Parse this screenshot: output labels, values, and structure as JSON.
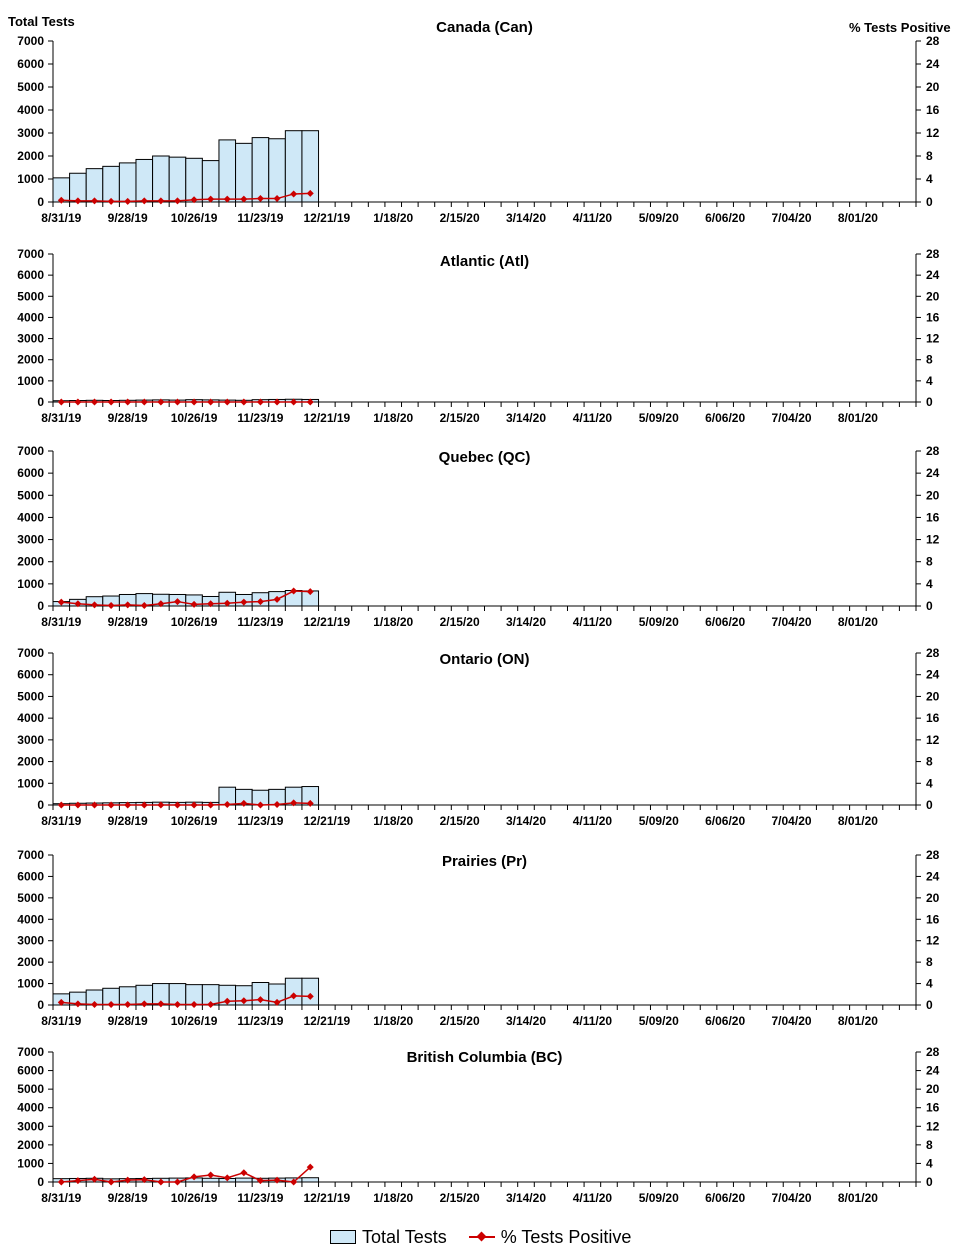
{
  "axis_titles": {
    "left": "Total Tests",
    "right": "% Tests Positive"
  },
  "legend": {
    "bars": "Total Tests",
    "line": "% Tests Positive"
  },
  "colors": {
    "bar_fill": "#cfe8f7",
    "bar_stroke": "#000000",
    "line": "#cc0000"
  },
  "chart_data": [
    {
      "type": "bar",
      "title": "Canada (Can)",
      "ylim": [
        0,
        7000
      ],
      "y_ticks": [
        0,
        1000,
        2000,
        3000,
        4000,
        5000,
        6000,
        7000
      ],
      "y2lim": [
        0,
        28
      ],
      "y2_ticks": [
        0,
        4,
        8,
        12,
        16,
        20,
        24,
        28
      ],
      "x_tick_labels": [
        "8/31/19",
        "9/28/19",
        "10/26/19",
        "11/23/19",
        "12/21/19",
        "1/18/20",
        "2/15/20",
        "3/14/20",
        "4/11/20",
        "5/09/20",
        "6/06/20",
        "7/04/20",
        "8/01/20"
      ],
      "total_weeks": 52,
      "series": [
        {
          "name": "Total Tests",
          "axis": "left",
          "type": "bar",
          "values": [
            1050,
            1250,
            1450,
            1550,
            1700,
            1850,
            2000,
            1950,
            1900,
            1800,
            2700,
            2550,
            2800,
            2750,
            3100,
            3100
          ]
        },
        {
          "name": "% Tests Positive",
          "axis": "right",
          "type": "line",
          "values": [
            0.3,
            0.2,
            0.2,
            0.1,
            0.1,
            0.2,
            0.2,
            0.2,
            0.4,
            0.5,
            0.5,
            0.5,
            0.6,
            0.6,
            1.4,
            1.5
          ]
        }
      ]
    },
    {
      "type": "bar",
      "title": "Atlantic (Atl)",
      "ylim": [
        0,
        7000
      ],
      "y_ticks": [
        0,
        1000,
        2000,
        3000,
        4000,
        5000,
        6000,
        7000
      ],
      "y2lim": [
        0,
        28
      ],
      "y2_ticks": [
        0,
        4,
        8,
        12,
        16,
        20,
        24,
        28
      ],
      "x_tick_labels": [
        "8/31/19",
        "9/28/19",
        "10/26/19",
        "11/23/19",
        "12/21/19",
        "1/18/20",
        "2/15/20",
        "3/14/20",
        "4/11/20",
        "5/09/20",
        "6/06/20",
        "7/04/20",
        "8/01/20"
      ],
      "total_weeks": 52,
      "series": [
        {
          "name": "Total Tests",
          "axis": "left",
          "type": "bar",
          "values": [
            60,
            70,
            80,
            70,
            80,
            90,
            100,
            90,
            110,
            100,
            90,
            80,
            110,
            120,
            130,
            120
          ]
        },
        {
          "name": "% Tests Positive",
          "axis": "right",
          "type": "line",
          "values": [
            0,
            0,
            0,
            0,
            0,
            0,
            0,
            0,
            0,
            0,
            0,
            0,
            0,
            0,
            0,
            0
          ]
        }
      ]
    },
    {
      "type": "bar",
      "title": "Quebec (QC)",
      "ylim": [
        0,
        7000
      ],
      "y_ticks": [
        0,
        1000,
        2000,
        3000,
        4000,
        5000,
        6000,
        7000
      ],
      "y2lim": [
        0,
        28
      ],
      "y2_ticks": [
        0,
        4,
        8,
        12,
        16,
        20,
        24,
        28
      ],
      "x_tick_labels": [
        "8/31/19",
        "9/28/19",
        "10/26/19",
        "11/23/19",
        "12/21/19",
        "1/18/20",
        "2/15/20",
        "3/14/20",
        "4/11/20",
        "5/09/20",
        "6/06/20",
        "7/04/20",
        "8/01/20"
      ],
      "total_weeks": 52,
      "series": [
        {
          "name": "Total Tests",
          "axis": "left",
          "type": "bar",
          "values": [
            200,
            300,
            420,
            450,
            520,
            560,
            530,
            520,
            500,
            430,
            620,
            520,
            600,
            650,
            700,
            680
          ]
        },
        {
          "name": "% Tests Positive",
          "axis": "right",
          "type": "line",
          "values": [
            0.7,
            0.4,
            0.2,
            0.1,
            0.2,
            0.1,
            0.4,
            0.8,
            0.3,
            0.4,
            0.5,
            0.7,
            0.8,
            1.2,
            2.7,
            2.6
          ]
        }
      ]
    },
    {
      "type": "bar",
      "title": "Ontario (ON)",
      "ylim": [
        0,
        7000
      ],
      "y_ticks": [
        0,
        1000,
        2000,
        3000,
        4000,
        5000,
        6000,
        7000
      ],
      "y2lim": [
        0,
        28
      ],
      "y2_ticks": [
        0,
        4,
        8,
        12,
        16,
        20,
        24,
        28
      ],
      "x_tick_labels": [
        "8/31/19",
        "9/28/19",
        "10/26/19",
        "11/23/19",
        "12/21/19",
        "1/18/20",
        "2/15/20",
        "3/14/20",
        "4/11/20",
        "5/09/20",
        "6/06/20",
        "7/04/20",
        "8/01/20"
      ],
      "total_weeks": 52,
      "series": [
        {
          "name": "Total Tests",
          "axis": "left",
          "type": "bar",
          "values": [
            60,
            80,
            90,
            100,
            110,
            120,
            130,
            120,
            130,
            120,
            820,
            720,
            680,
            720,
            820,
            850
          ]
        },
        {
          "name": "% Tests Positive",
          "axis": "right",
          "type": "line",
          "values": [
            0,
            0,
            0,
            0,
            0,
            0,
            0,
            0,
            0,
            0,
            0.1,
            0.3,
            0,
            0.1,
            0.4,
            0.3
          ]
        }
      ]
    },
    {
      "type": "bar",
      "title": "Prairies (Pr)",
      "ylim": [
        0,
        7000
      ],
      "y_ticks": [
        0,
        1000,
        2000,
        3000,
        4000,
        5000,
        6000,
        7000
      ],
      "y2lim": [
        0,
        28
      ],
      "y2_ticks": [
        0,
        4,
        8,
        12,
        16,
        20,
        24,
        28
      ],
      "x_tick_labels": [
        "8/31/19",
        "9/28/19",
        "10/26/19",
        "11/23/19",
        "12/21/19",
        "1/18/20",
        "2/15/20",
        "3/14/20",
        "4/11/20",
        "5/09/20",
        "6/06/20",
        "7/04/20",
        "8/01/20"
      ],
      "total_weeks": 52,
      "series": [
        {
          "name": "Total Tests",
          "axis": "left",
          "type": "bar",
          "values": [
            520,
            600,
            700,
            780,
            850,
            920,
            1000,
            1000,
            950,
            950,
            920,
            900,
            1050,
            980,
            1250,
            1250
          ]
        },
        {
          "name": "% Tests Positive",
          "axis": "right",
          "type": "line",
          "values": [
            0.5,
            0.2,
            0.1,
            0.1,
            0.1,
            0.2,
            0.2,
            0.1,
            0.1,
            0.1,
            0.7,
            0.8,
            1.0,
            0.5,
            1.7,
            1.6
          ]
        }
      ]
    },
    {
      "type": "bar",
      "title": "British Columbia (BC)",
      "ylim": [
        0,
        7000
      ],
      "y_ticks": [
        0,
        1000,
        2000,
        3000,
        4000,
        5000,
        6000,
        7000
      ],
      "y2lim": [
        0,
        28
      ],
      "y2_ticks": [
        0,
        4,
        8,
        12,
        16,
        20,
        24,
        28
      ],
      "x_tick_labels": [
        "8/31/19",
        "9/28/19",
        "10/26/19",
        "11/23/19",
        "12/21/19",
        "1/18/20",
        "2/15/20",
        "3/14/20",
        "4/11/20",
        "5/09/20",
        "6/06/20",
        "7/04/20",
        "8/01/20"
      ],
      "total_weeks": 52,
      "series": [
        {
          "name": "Total Tests",
          "axis": "left",
          "type": "bar",
          "values": [
            180,
            190,
            200,
            170,
            180,
            190,
            200,
            210,
            220,
            200,
            190,
            210,
            200,
            210,
            220,
            230
          ]
        },
        {
          "name": "% Tests Positive",
          "axis": "right",
          "type": "line",
          "values": [
            0,
            0.3,
            0.6,
            0,
            0.4,
            0.5,
            0,
            0,
            1.1,
            1.5,
            0.9,
            2.0,
            0.3,
            0.4,
            0,
            3.2
          ]
        }
      ]
    }
  ]
}
